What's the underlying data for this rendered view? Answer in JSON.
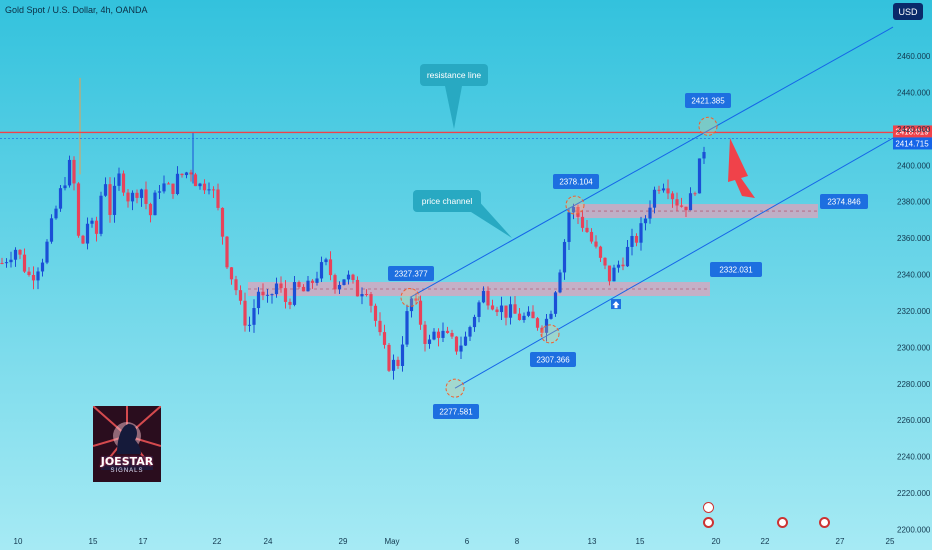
{
  "header": {
    "title": "Gold Spot / U.S. Dollar, 4h, OANDA",
    "currency_button": "USD"
  },
  "logo": {
    "name": "JOESTAR",
    "subtitle": "SIGNALS"
  },
  "colors": {
    "background_top": "#33c2dd",
    "background_bottom": "#a6eaf4",
    "up_candle": "#1a4fd6",
    "down_candle": "#e8425a",
    "channel_line": "#1565e8",
    "resistance": "#f0424a",
    "zone": "#e8a0b8",
    "callout": "#28a9c2",
    "price_label": "#1d6fe0",
    "arrow": "#f0424a"
  },
  "chart_data": {
    "type": "candlestick",
    "y_axis": {
      "ylim": [
        2200,
        2475
      ],
      "ticks": [
        "2460.000",
        "2440.000",
        "2420.000",
        "2400.000",
        "2380.000",
        "2360.000",
        "2340.000",
        "2320.000",
        "2300.000",
        "2280.000",
        "2260.000",
        "2240.000",
        "2220.000",
        "2200.000"
      ]
    },
    "x_axis": {
      "ticks": [
        "10",
        "15",
        "17",
        "22",
        "24",
        "29",
        "May",
        "6",
        "8",
        "13",
        "15",
        "20",
        "22",
        "27",
        "25"
      ]
    },
    "current_price_tags": [
      "2418.019",
      "2414.715"
    ],
    "resistance_level": 2418.019,
    "annotations": [
      {
        "kind": "callout",
        "text": "resistance line"
      },
      {
        "kind": "callout",
        "text": "price channel"
      },
      {
        "kind": "price_label",
        "text": "2421.385",
        "value": 2421.385
      },
      {
        "kind": "price_label",
        "text": "2378.104",
        "value": 2378.104
      },
      {
        "kind": "price_label",
        "text": "2327.377",
        "value": 2327.377
      },
      {
        "kind": "price_label",
        "text": "2307.366",
        "value": 2307.366
      },
      {
        "kind": "price_label",
        "text": "2277.581",
        "value": 2277.581
      },
      {
        "kind": "zone_label",
        "text": "2374.846",
        "value": 2374.846
      },
      {
        "kind": "zone_label",
        "text": "2332.031",
        "value": 2332.031
      }
    ],
    "channel": {
      "lower_from": 2277.581,
      "lower_through": 2307.366,
      "upper_from": 2327.377,
      "upper_through": 2378.104
    },
    "zones": [
      {
        "value": 2374.846
      },
      {
        "value": 2332.031
      }
    ],
    "grid": false
  }
}
